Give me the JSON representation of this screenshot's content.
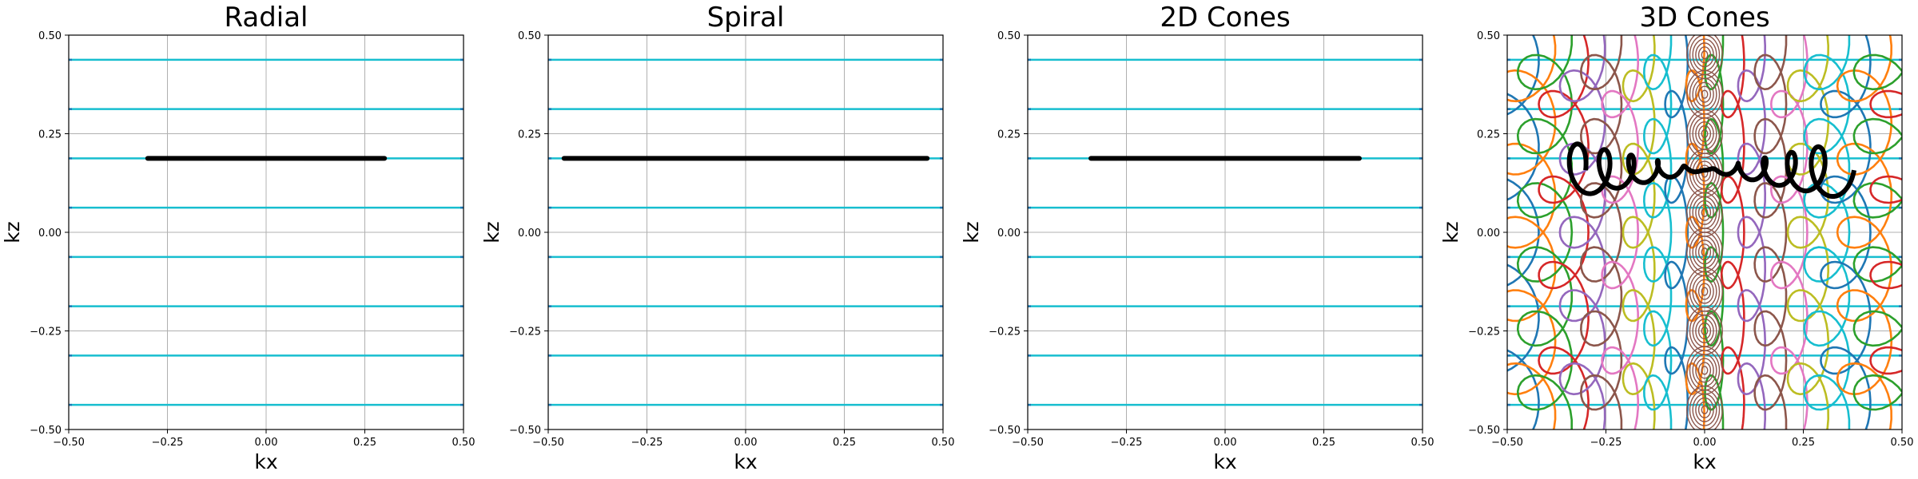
{
  "chart_data": [
    {
      "type": "line",
      "title": "Radial",
      "xlabel": "kx",
      "ylabel": "kz",
      "xlim": [
        -0.5,
        0.5
      ],
      "ylim": [
        -0.5,
        0.5
      ],
      "xticks": [
        "−0.50",
        "−0.25",
        "0.00",
        "0.25",
        "0.50"
      ],
      "yticks": [
        "−0.50",
        "−0.25",
        "0.00",
        "0.25",
        "0.50"
      ],
      "grid": true,
      "background_lines_kz": [
        -0.4375,
        -0.3125,
        -0.1875,
        -0.0625,
        0.0625,
        0.1875,
        0.3125,
        0.4375
      ],
      "background_color": "#17becf",
      "highlight": {
        "x": [
          -0.3,
          0.3
        ],
        "y": [
          0.1875,
          0.1875
        ],
        "color": "#000000"
      }
    },
    {
      "type": "line",
      "title": "Spiral",
      "xlabel": "kx",
      "ylabel": "kz",
      "xlim": [
        -0.5,
        0.5
      ],
      "ylim": [
        -0.5,
        0.5
      ],
      "xticks": [
        "−0.50",
        "−0.25",
        "0.00",
        "0.25",
        "0.50"
      ],
      "yticks": [
        "−0.50",
        "−0.25",
        "0.00",
        "0.25",
        "0.50"
      ],
      "grid": true,
      "background_lines_kz": [
        -0.4375,
        -0.3125,
        -0.1875,
        -0.0625,
        0.0625,
        0.1875,
        0.3125,
        0.4375
      ],
      "background_color": "#17becf",
      "highlight": {
        "x": [
          -0.46,
          0.46
        ],
        "y": [
          0.1875,
          0.1875
        ],
        "color": "#000000"
      }
    },
    {
      "type": "line",
      "title": "2D Cones",
      "xlabel": "kx",
      "ylabel": "kz",
      "xlim": [
        -0.5,
        0.5
      ],
      "ylim": [
        -0.5,
        0.5
      ],
      "xticks": [
        "−0.50",
        "−0.25",
        "0.00",
        "0.25",
        "0.50"
      ],
      "yticks": [
        "−0.50",
        "−0.25",
        "0.00",
        "0.25",
        "0.50"
      ],
      "grid": true,
      "background_lines_kz": [
        -0.4375,
        -0.3125,
        -0.1875,
        -0.0625,
        0.0625,
        0.1875,
        0.3125,
        0.4375
      ],
      "background_color": "#17becf",
      "highlight": {
        "x": [
          -0.34,
          0.34
        ],
        "y": [
          0.1875,
          0.1875
        ],
        "color": "#000000"
      }
    },
    {
      "type": "line",
      "title": "3D Cones",
      "xlabel": "kx",
      "ylabel": "kz",
      "xlim": [
        -0.5,
        0.5
      ],
      "ylim": [
        -0.5,
        0.5
      ],
      "xticks": [
        "−0.50",
        "−0.25",
        "0.00",
        "0.25",
        "0.50"
      ],
      "yticks": [
        "−0.50",
        "−0.25",
        "0.00",
        "0.25",
        "0.50"
      ],
      "grid": true,
      "background_lines_kz": [
        -0.4375,
        -0.3125,
        -0.1875,
        -0.0625,
        0.0625,
        0.1875,
        0.3125,
        0.4375
      ],
      "background_color": "#17becf",
      "cone_colors": [
        "#1f77b4",
        "#ff7f0e",
        "#2ca02c",
        "#d62728",
        "#9467bd",
        "#8c564b",
        "#e377c2",
        "#bcbd22",
        "#17becf"
      ],
      "highlight": {
        "x": [
          -0.34,
          0.34
        ],
        "y": [
          0.1875,
          0.1875
        ],
        "color": "#000000",
        "max_radius": 0.07
      }
    }
  ]
}
